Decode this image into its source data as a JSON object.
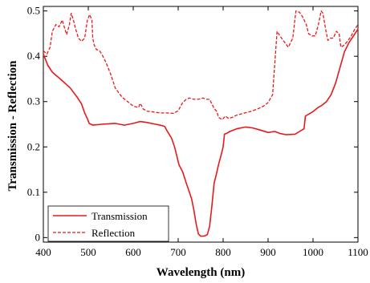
{
  "chart_data": {
    "type": "line",
    "title": "",
    "xlabel": "Wavelength (nm)",
    "ylabel": "Transmission - Reflection",
    "xlim": [
      400,
      1100
    ],
    "ylim": [
      -0.01,
      0.51
    ],
    "xticks": [
      400,
      500,
      600,
      700,
      800,
      900,
      1000,
      1100
    ],
    "yticks": [
      0,
      0.1,
      0.2,
      0.3,
      0.4,
      0.5
    ],
    "ytick_labels": [
      "0",
      "0.1",
      "0.2",
      "0.3",
      "0.4",
      "0.5"
    ],
    "grid": false,
    "legend_position": "bottom-left",
    "series": [
      {
        "name": "Transmission",
        "color": "#e8191a",
        "dash": "solid",
        "x": [
          400,
          410,
          420,
          440,
          460,
          475,
          485,
          492,
          498,
          502,
          510,
          530,
          560,
          580,
          600,
          615,
          630,
          650,
          665,
          670,
          675,
          685,
          692,
          697,
          702,
          710,
          718,
          725,
          730,
          735,
          740,
          745,
          750,
          755,
          760,
          765,
          770,
          775,
          780,
          785,
          790,
          795,
          800,
          803,
          808,
          815,
          830,
          850,
          865,
          880,
          900,
          915,
          925,
          940,
          960,
          970,
          980,
          983,
          990,
          1000,
          1010,
          1020,
          1030,
          1040,
          1050,
          1060,
          1070,
          1080,
          1090,
          1100
        ],
        "y": [
          0.405,
          0.38,
          0.365,
          0.348,
          0.33,
          0.31,
          0.295,
          0.275,
          0.262,
          0.252,
          0.248,
          0.25,
          0.252,
          0.248,
          0.252,
          0.256,
          0.254,
          0.25,
          0.247,
          0.245,
          0.236,
          0.22,
          0.2,
          0.18,
          0.16,
          0.145,
          0.12,
          0.1,
          0.085,
          0.06,
          0.03,
          0.008,
          0.003,
          0.003,
          0.004,
          0.007,
          0.025,
          0.07,
          0.12,
          0.14,
          0.162,
          0.18,
          0.2,
          0.228,
          0.23,
          0.234,
          0.24,
          0.244,
          0.242,
          0.238,
          0.232,
          0.234,
          0.23,
          0.227,
          0.228,
          0.234,
          0.24,
          0.268,
          0.272,
          0.278,
          0.286,
          0.292,
          0.3,
          0.315,
          0.34,
          0.375,
          0.41,
          0.43,
          0.445,
          0.46
        ]
      },
      {
        "name": "Reflection",
        "color": "#e8191a",
        "dash": "dashed",
        "x": [
          400,
          408,
          415,
          420,
          428,
          435,
          442,
          448,
          452,
          458,
          462,
          467,
          472,
          478,
          485,
          492,
          498,
          503,
          508,
          510,
          513,
          518,
          525,
          530,
          540,
          550,
          560,
          575,
          590,
          600,
          612,
          615,
          618,
          622,
          630,
          645,
          660,
          675,
          690,
          700,
          710,
          718,
          725,
          735,
          745,
          755,
          762,
          770,
          775,
          780,
          786,
          790,
          798,
          805,
          812,
          820,
          830,
          845,
          860,
          875,
          890,
          900,
          910,
          915,
          920,
          930,
          945,
          955,
          962,
          970,
          978,
          985,
          990,
          998,
          1005,
          1012,
          1018,
          1022,
          1028,
          1033,
          1038,
          1045,
          1052,
          1058,
          1062,
          1070,
          1078,
          1085,
          1092,
          1100
        ],
        "y": [
          0.412,
          0.405,
          0.42,
          0.455,
          0.47,
          0.465,
          0.48,
          0.46,
          0.448,
          0.47,
          0.495,
          0.48,
          0.46,
          0.44,
          0.433,
          0.44,
          0.48,
          0.492,
          0.48,
          0.44,
          0.425,
          0.415,
          0.412,
          0.405,
          0.385,
          0.36,
          0.33,
          0.31,
          0.298,
          0.29,
          0.287,
          0.296,
          0.292,
          0.284,
          0.279,
          0.277,
          0.275,
          0.275,
          0.274,
          0.28,
          0.298,
          0.305,
          0.308,
          0.305,
          0.305,
          0.308,
          0.305,
          0.305,
          0.295,
          0.285,
          0.278,
          0.265,
          0.26,
          0.268,
          0.263,
          0.265,
          0.27,
          0.274,
          0.278,
          0.283,
          0.29,
          0.298,
          0.315,
          0.385,
          0.455,
          0.44,
          0.42,
          0.44,
          0.5,
          0.497,
          0.485,
          0.47,
          0.45,
          0.445,
          0.445,
          0.47,
          0.5,
          0.495,
          0.46,
          0.435,
          0.44,
          0.44,
          0.455,
          0.45,
          0.42,
          0.425,
          0.435,
          0.445,
          0.458,
          0.47
        ]
      }
    ]
  }
}
